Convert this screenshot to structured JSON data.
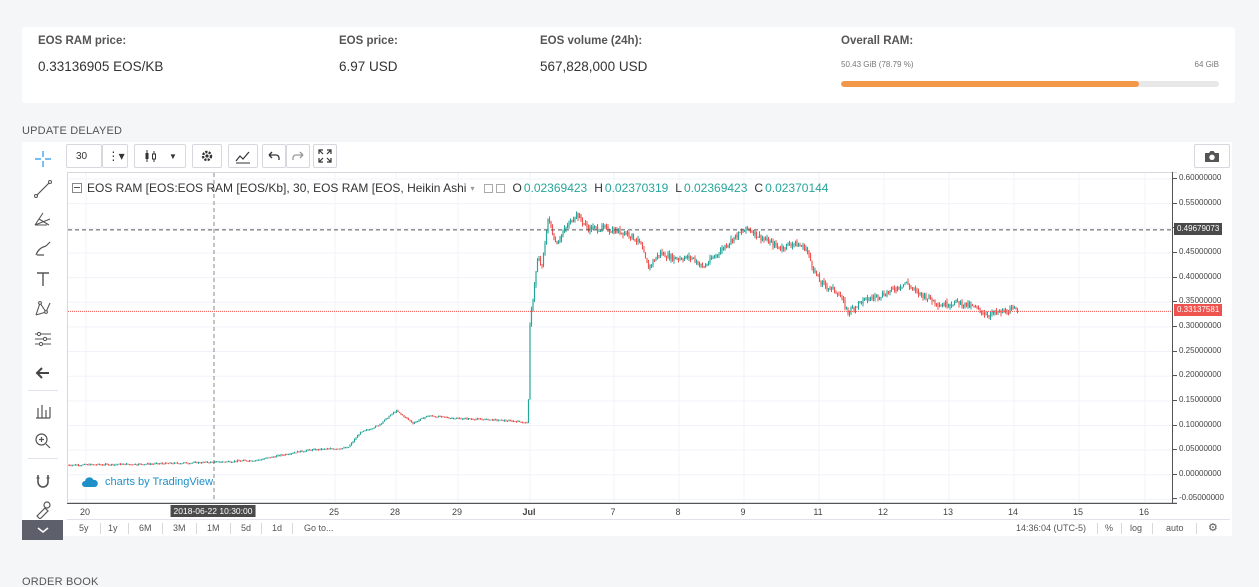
{
  "stats": {
    "ram_price": {
      "label": "EOS RAM price:",
      "value": "0.33136905 EOS/KB"
    },
    "eos_price": {
      "label": "EOS price:",
      "value": "6.97 USD"
    },
    "volume": {
      "label": "EOS volume (24h):",
      "value": "567,828,000 USD"
    },
    "overall_ram": {
      "label": "Overall RAM:",
      "used": "50.43 GiB (78.79 %)",
      "total": "64 GiB",
      "used_fraction": 0.7879,
      "bar_color": "#f39749"
    }
  },
  "update_status": "UPDATE DELAYED",
  "order_book_title": "ORDER BOOK",
  "toolbar": {
    "interval": "30",
    "icons": [
      "candles-icon",
      "settings-icon",
      "indicators-icon",
      "undo-icon",
      "redo-icon",
      "fullscreen-icon"
    ],
    "camera_icon": "camera-icon"
  },
  "left_tools": [
    "crosshair-icon",
    "trendline-icon",
    "pitchfork-icon",
    "brush-icon",
    "text-icon",
    "pattern-icon",
    "prediction-icon",
    "back-arrow-icon",
    "measure-icon",
    "zoom-icon",
    "magnet-icon",
    "lock-icon"
  ],
  "legend": {
    "symbol": "EOS RAM [EOS:EOS RAM [EOS/Kb], 30, EOS RAM [EOS, Heikin Ashi",
    "o_label": "O",
    "o": "0.02369423",
    "h_label": "H",
    "h": "0.02370319",
    "l_label": "L",
    "l": "0.02369423",
    "c_label": "C",
    "c": "0.02370144"
  },
  "branding": "charts by TradingView",
  "chart_data": {
    "type": "line",
    "style": "Heikin Ashi candles",
    "x_ticks": [
      "20",
      "25",
      "28",
      "29",
      "Jul",
      "7",
      "8",
      "9",
      "11",
      "12",
      "13",
      "14",
      "15",
      "16"
    ],
    "y_ticks": [
      "0.60000000",
      "0.55000000",
      "0.50000000",
      "0.45000000",
      "0.40000000",
      "0.35000000",
      "0.30000000",
      "0.25000000",
      "0.20000000",
      "0.15000000",
      "0.10000000",
      "0.05000000",
      "0.00000000",
      "-0.05000000"
    ],
    "ylim": [
      -0.05,
      0.6
    ],
    "crosshair_price": "0.49679073",
    "last_price": "0.33137581",
    "crosshair_time": "2018-06-22 10:30:00",
    "up_color": "#26a69a",
    "down_color": "#ef5350",
    "series": [
      {
        "x": [
          "20",
          "22",
          "24",
          "25",
          "26",
          "27",
          "28",
          "28.5",
          "29",
          "30",
          "Jul",
          "Jul",
          "5",
          "6",
          "7",
          "7.5",
          "8",
          "8.5",
          "9",
          "10",
          "10.5",
          "11",
          "11.5",
          "12",
          "12.5",
          "13",
          "13.5"
        ],
        "values": [
          0.02,
          0.025,
          0.04,
          0.05,
          0.08,
          0.1,
          0.13,
          0.115,
          0.12,
          0.105,
          0.11,
          0.5,
          0.53,
          0.51,
          0.5,
          0.45,
          0.44,
          0.45,
          0.48,
          0.46,
          0.45,
          0.37,
          0.35,
          0.38,
          0.36,
          0.33,
          0.34
        ]
      }
    ]
  },
  "bottombar": {
    "ranges": [
      "5y",
      "1y",
      "6M",
      "3M",
      "1M",
      "5d",
      "1d"
    ],
    "goto": "Go to...",
    "clock": "14:36:04 (UTC-5)",
    "percent": "%",
    "log": "log",
    "auto": "auto"
  }
}
